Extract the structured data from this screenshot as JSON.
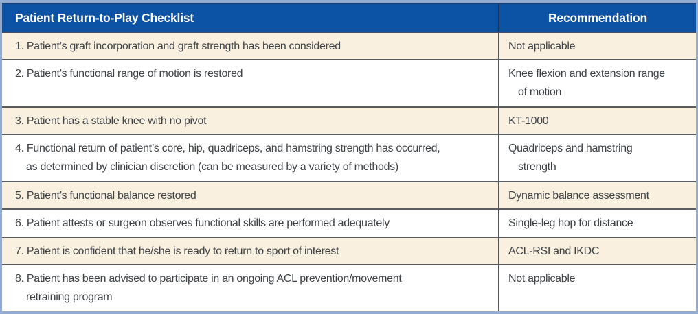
{
  "table": {
    "title": "Patient Return-to-Play Checklist table",
    "header": {
      "checklist": "Patient Return-to-Play Checklist",
      "recommendation": "Recommendation"
    },
    "rows": [
      {
        "item_lines": [
          "1. Patient’s graft incorporation and graft strength has been considered"
        ],
        "rec_lines": [
          "Not applicable"
        ]
      },
      {
        "item_lines": [
          "2. Patient’s functional range of motion is restored"
        ],
        "rec_lines": [
          "Knee flexion and extension range",
          "of motion"
        ]
      },
      {
        "item_lines": [
          "3. Patient has a stable knee with no pivot"
        ],
        "rec_lines": [
          "KT-1000"
        ]
      },
      {
        "item_lines": [
          "4. Functional return of patient’s core, hip, quadriceps, and hamstring strength has occurred,",
          "as determined by clinician discretion (can be measured by a variety of methods)"
        ],
        "rec_lines": [
          "Quadriceps and hamstring",
          "strength"
        ]
      },
      {
        "item_lines": [
          "5. Patient’s functional balance restored"
        ],
        "rec_lines": [
          "Dynamic balance assessment"
        ]
      },
      {
        "item_lines": [
          "6. Patient attests or surgeon observes functional skills are performed adequately"
        ],
        "rec_lines": [
          "Single-leg hop for distance"
        ]
      },
      {
        "item_lines": [
          "7. Patient is confident that he/she is ready to return to sport of interest"
        ],
        "rec_lines": [
          "ACL-RSI and IKDC"
        ]
      },
      {
        "item_lines": [
          "8. Patient has been advised to participate in an ongoing ACL prevention/movement",
          "retraining program"
        ],
        "rec_lines": [
          "Not applicable"
        ]
      }
    ],
    "colors": {
      "header_bg": "#0d53a5",
      "header_text": "#ffffff",
      "cream_row_bg": "#faf0df",
      "white_row_bg": "#ffffff",
      "outer_border": "#93abd0",
      "header_accent": "#1e3f72",
      "row_divider": "#595b5e",
      "body_text": "#3e4347"
    }
  }
}
